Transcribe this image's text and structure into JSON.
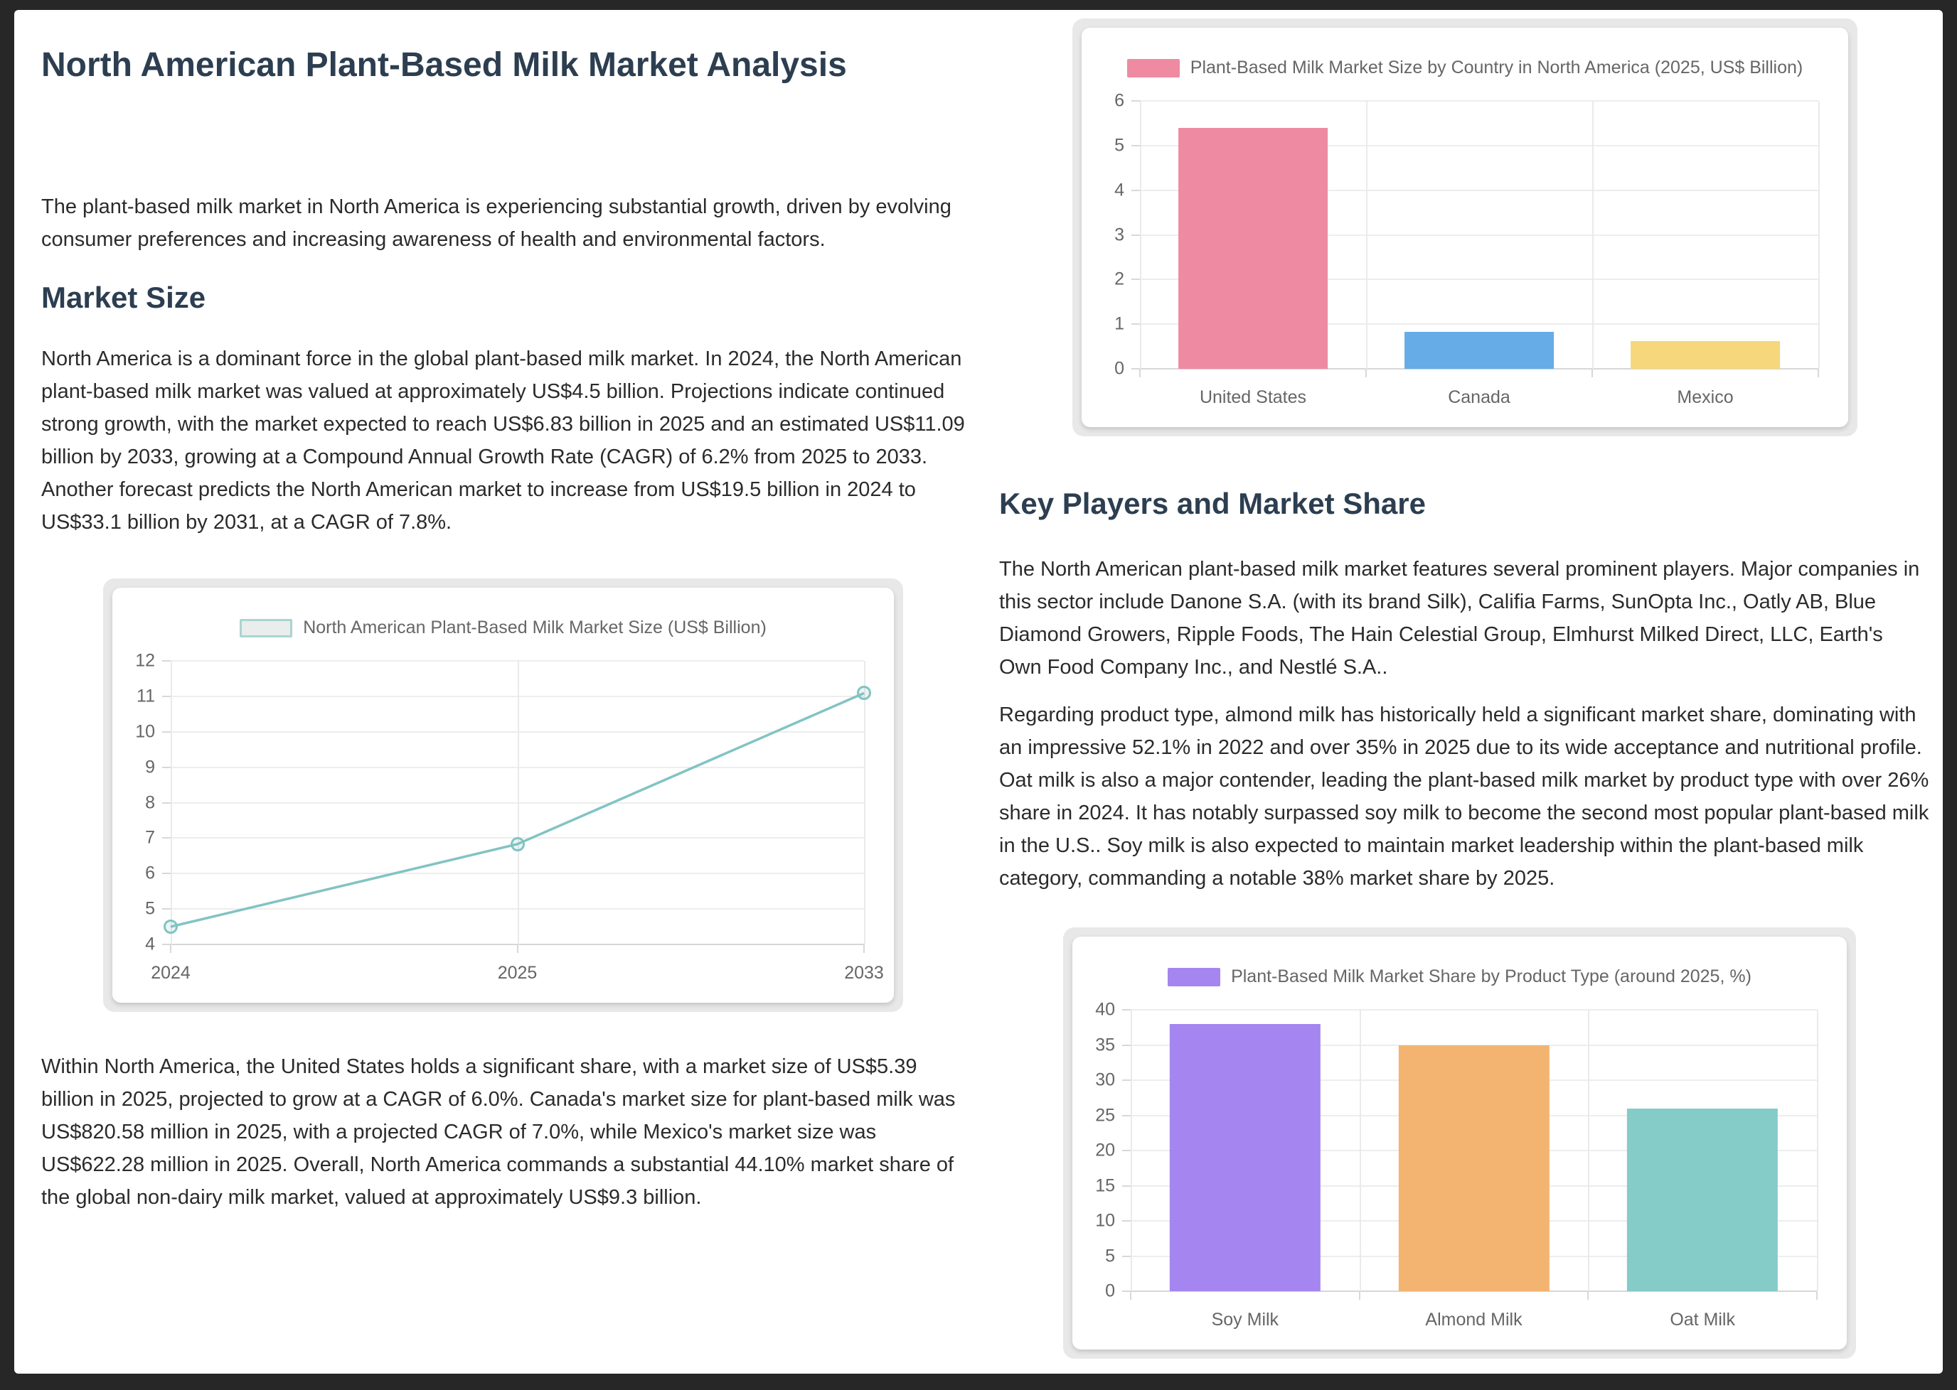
{
  "page": {
    "title": "North American Plant-Based Milk Market Analysis",
    "intro": "The plant-based milk market in North America is experiencing substantial growth, driven by evolving consumer preferences and increasing awareness of health and environmental factors.",
    "sections": {
      "market_size": {
        "heading": "Market Size",
        "para1": "North America is a dominant force in the global plant-based milk market. In 2024, the North American plant-based milk market was valued at approximately US$4.5 billion. Projections indicate continued strong growth, with the market expected to reach US$6.83 billion in 2025 and an estimated US$11.09 billion by 2033, growing at a Compound Annual Growth Rate (CAGR) of 6.2% from 2025 to 2033. Another forecast predicts the North American market to increase from US$19.5 billion in 2024 to US$33.1 billion by 2031, at a CAGR of 7.8%.",
        "para2": "Within North America, the United States holds a significant share, with a market size of US$5.39 billion in 2025, projected to grow at a CAGR of 6.0%. Canada's market size for plant-based milk was US$820.58 million in 2025, with a projected CAGR of 7.0%, while Mexico's market size was US$622.28 million in 2025. Overall, North America commands a substantial 44.10% market share of the global non-dairy milk market, valued at approximately US$9.3 billion."
      },
      "key_players": {
        "heading": "Key Players and Market Share",
        "para1": "The North American plant-based milk market features several prominent players. Major companies in this sector include Danone S.A. (with its brand Silk), Califia Farms, SunOpta Inc., Oatly AB, Blue Diamond Growers, Ripple Foods, The Hain Celestial Group, Elmhurst Milked Direct, LLC, Earth's Own Food Company Inc., and Nestlé S.A..",
        "para2": "Regarding product type, almond milk has historically held a significant market share, dominating with an impressive 52.1% in 2022 and over 35% in 2025 due to its wide acceptance and nutritional profile. Oat milk is also a major contender, leading the plant-based milk market by product type with over 26% share in 2024. It has notably surpassed soy milk to become the second most popular plant-based milk in the U.S.. Soy milk is also expected to maintain market leadership within the plant-based milk category, commanding a notable 38% market share by 2025."
      }
    }
  },
  "chart_data": [
    {
      "id": "line-market-size",
      "type": "line",
      "title": "North American Plant-Based Milk Market Size (US$ Billion)",
      "categories": [
        "2024",
        "2025",
        "2033"
      ],
      "values": [
        4.5,
        6.83,
        11.09
      ],
      "ylim": [
        4,
        12
      ],
      "yticks": [
        4,
        5,
        6,
        7,
        8,
        9,
        10,
        11,
        12
      ],
      "line_color": "#82c3c3",
      "legend_fill": "#e9edec",
      "legend_border": "#a9d5d1",
      "grid": true,
      "legend_position": "top",
      "xlabel": "",
      "ylabel": ""
    },
    {
      "id": "bar-country",
      "type": "bar",
      "title": "Plant-Based Milk Market Size by Country in North America (2025, US$ Billion)",
      "categories": [
        "United States",
        "Canada",
        "Mexico"
      ],
      "values": [
        5.39,
        0.82,
        0.62
      ],
      "ylim": [
        0,
        6
      ],
      "yticks": [
        0,
        1,
        2,
        3,
        4,
        5,
        6
      ],
      "bar_colors": [
        "#ee8aa1",
        "#66ace6",
        "#f6d77c"
      ],
      "legend_color": "#ee8aa1",
      "grid": true,
      "legend_position": "top",
      "xlabel": "",
      "ylabel": ""
    },
    {
      "id": "bar-product",
      "type": "bar",
      "title": "Plant-Based Milk Market Share by Product Type (around 2025, %)",
      "categories": [
        "Soy Milk",
        "Almond Milk",
        "Oat Milk"
      ],
      "values": [
        38,
        35,
        26
      ],
      "ylim": [
        0,
        40
      ],
      "yticks": [
        0,
        5,
        10,
        15,
        20,
        25,
        30,
        35,
        40
      ],
      "bar_colors": [
        "#a585f0",
        "#f2b470",
        "#85cbc8"
      ],
      "legend_color": "#a585f0",
      "grid": true,
      "legend_position": "top",
      "xlabel": "",
      "ylabel": ""
    }
  ]
}
